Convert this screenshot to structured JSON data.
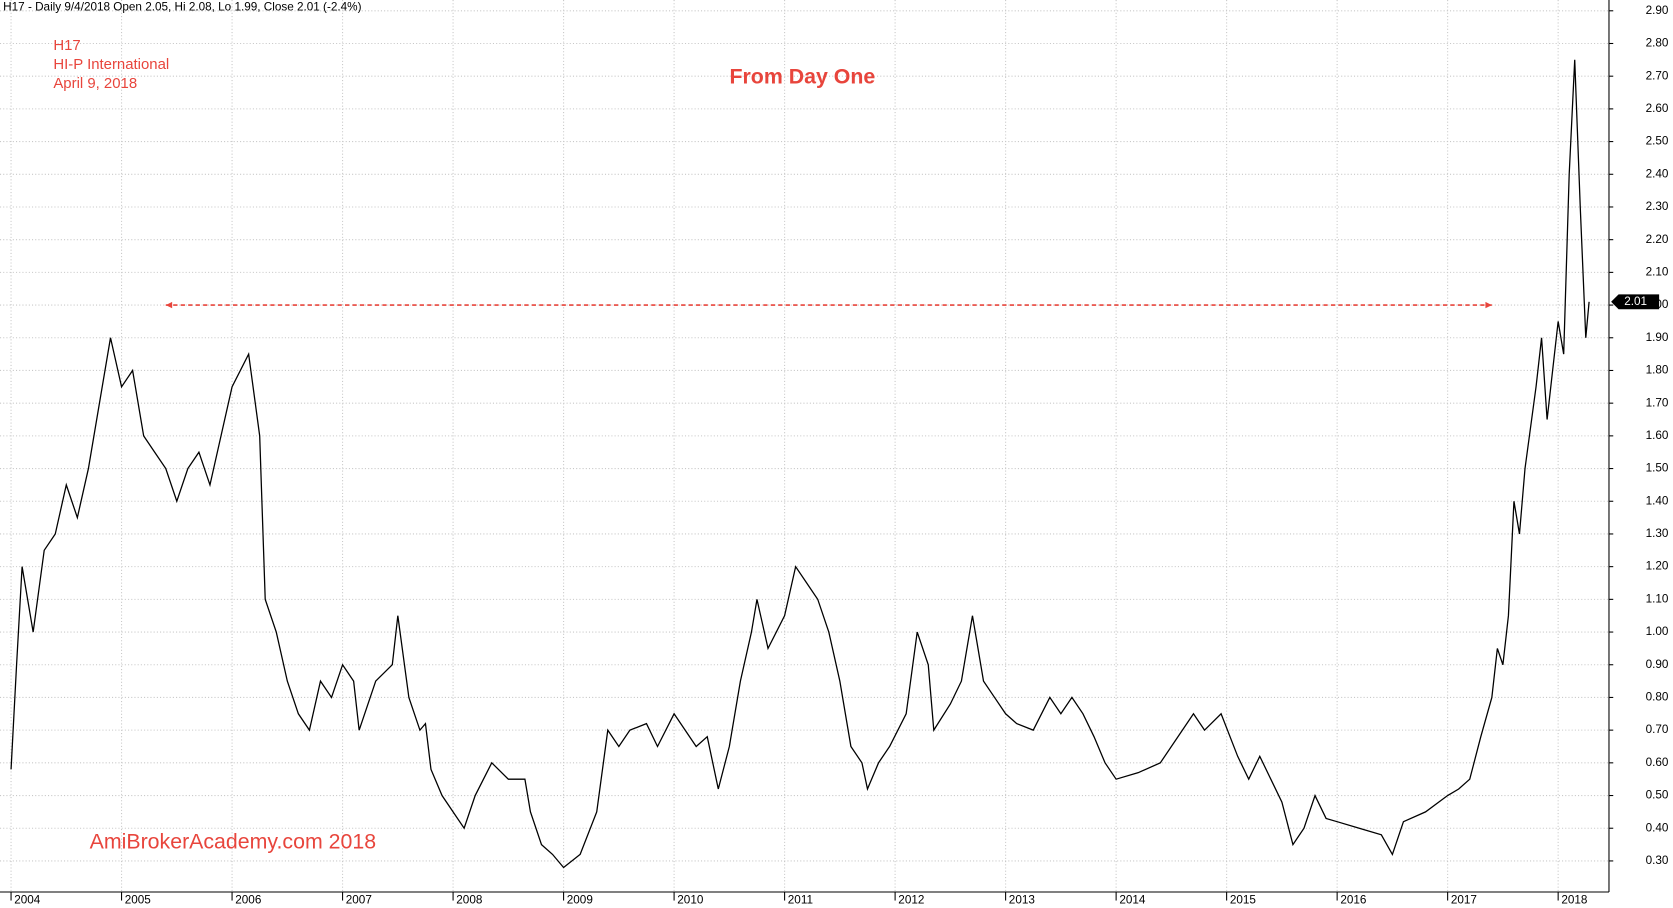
{
  "chart_data": {
    "type": "line",
    "header": "H17 - Daily 9/4/2018 Open 2.05, Hi 2.08, Lo 1.99, Close 2.01 (-2.4%)",
    "title": "From Day One",
    "annotations": [
      "H17",
      "HI-P International",
      "April 9, 2018"
    ],
    "watermark": "AmiBrokerAcademy.com  2018",
    "color": "#000000",
    "grid": true,
    "x": [
      2004.0,
      2004.05,
      2004.1,
      2004.2,
      2004.3,
      2004.4,
      2004.5,
      2004.6,
      2004.7,
      2004.8,
      2004.9,
      2005.0,
      2005.1,
      2005.2,
      2005.3,
      2005.4,
      2005.5,
      2005.6,
      2005.7,
      2005.8,
      2005.9,
      2006.0,
      2006.15,
      2006.25,
      2006.27,
      2006.3,
      2006.4,
      2006.5,
      2006.6,
      2006.7,
      2006.8,
      2006.9,
      2007.0,
      2007.1,
      2007.15,
      2007.3,
      2007.45,
      2007.5,
      2007.6,
      2007.7,
      2007.75,
      2007.8,
      2007.9,
      2008.0,
      2008.1,
      2008.2,
      2008.35,
      2008.5,
      2008.65,
      2008.7,
      2008.8,
      2008.9,
      2009.0,
      2009.15,
      2009.3,
      2009.4,
      2009.5,
      2009.6,
      2009.75,
      2009.85,
      2010.0,
      2010.1,
      2010.2,
      2010.3,
      2010.4,
      2010.5,
      2010.6,
      2010.7,
      2010.75,
      2010.85,
      2011.0,
      2011.1,
      2011.2,
      2011.3,
      2011.4,
      2011.5,
      2011.6,
      2011.7,
      2011.75,
      2011.85,
      2011.95,
      2012.1,
      2012.2,
      2012.3,
      2012.35,
      2012.5,
      2012.6,
      2012.7,
      2012.8,
      2012.9,
      2013.0,
      2013.1,
      2013.25,
      2013.4,
      2013.5,
      2013.6,
      2013.7,
      2013.8,
      2013.9,
      2014.0,
      2014.2,
      2014.4,
      2014.6,
      2014.7,
      2014.8,
      2014.95,
      2015.1,
      2015.2,
      2015.3,
      2015.4,
      2015.5,
      2015.6,
      2015.7,
      2015.8,
      2015.9,
      2016.0,
      2016.2,
      2016.4,
      2016.5,
      2016.6,
      2016.8,
      2017.0,
      2017.1,
      2017.2,
      2017.3,
      2017.4,
      2017.45,
      2017.5,
      2017.55,
      2017.6,
      2017.65,
      2017.7,
      2017.8,
      2017.85,
      2017.9,
      2017.95,
      2018.0,
      2018.05,
      2018.1,
      2018.15,
      2018.2,
      2018.25,
      2018.28
    ],
    "values": [
      0.58,
      0.9,
      1.2,
      1.0,
      1.25,
      1.3,
      1.45,
      1.35,
      1.5,
      1.7,
      1.9,
      1.75,
      1.8,
      1.6,
      1.55,
      1.5,
      1.4,
      1.5,
      1.55,
      1.45,
      1.6,
      1.75,
      1.85,
      1.6,
      1.4,
      1.1,
      1.0,
      0.85,
      0.75,
      0.7,
      0.85,
      0.8,
      0.9,
      0.85,
      0.7,
      0.85,
      0.9,
      1.05,
      0.8,
      0.7,
      0.72,
      0.58,
      0.5,
      0.45,
      0.4,
      0.5,
      0.6,
      0.55,
      0.55,
      0.45,
      0.35,
      0.32,
      0.28,
      0.32,
      0.45,
      0.7,
      0.65,
      0.7,
      0.72,
      0.65,
      0.75,
      0.7,
      0.65,
      0.68,
      0.52,
      0.65,
      0.85,
      1.0,
      1.1,
      0.95,
      1.05,
      1.2,
      1.15,
      1.1,
      1.0,
      0.85,
      0.65,
      0.6,
      0.52,
      0.6,
      0.65,
      0.75,
      1.0,
      0.9,
      0.7,
      0.78,
      0.85,
      1.05,
      0.85,
      0.8,
      0.75,
      0.72,
      0.7,
      0.8,
      0.75,
      0.8,
      0.75,
      0.68,
      0.6,
      0.55,
      0.57,
      0.6,
      0.7,
      0.75,
      0.7,
      0.75,
      0.62,
      0.55,
      0.62,
      0.55,
      0.48,
      0.35,
      0.4,
      0.5,
      0.43,
      0.42,
      0.4,
      0.38,
      0.32,
      0.42,
      0.45,
      0.5,
      0.52,
      0.55,
      0.68,
      0.8,
      0.95,
      0.9,
      1.05,
      1.4,
      1.3,
      1.5,
      1.75,
      1.9,
      1.65,
      1.8,
      1.95,
      1.85,
      2.4,
      2.75,
      2.3,
      1.9,
      2.01
    ],
    "close_label": 2.01,
    "reference_line": {
      "value": 2.0,
      "x": [
        2005.4,
        2017.4
      ],
      "color": "#e8453c"
    },
    "xlim": [
      2003.9,
      2018.46
    ],
    "xticks": [
      2004,
      2005,
      2006,
      2007,
      2008,
      2009,
      2010,
      2011,
      2012,
      2013,
      2014,
      2015,
      2016,
      2017,
      2018
    ],
    "ylim": [
      0.205,
      2.933
    ],
    "yticks": [
      {
        "value": 0.3,
        "label": "0.30"
      },
      {
        "value": 0.4,
        "label": "0.40"
      },
      {
        "value": 0.5,
        "label": "0.50"
      },
      {
        "value": 0.6,
        "label": "0.60"
      },
      {
        "value": 0.7,
        "label": "0.70"
      },
      {
        "value": 0.8,
        "label": "0.80"
      },
      {
        "value": 0.9,
        "label": "0.90"
      },
      {
        "value": 1.0,
        "label": "1.00"
      },
      {
        "value": 1.1,
        "label": "1.10"
      },
      {
        "value": 1.2,
        "label": "1.20"
      },
      {
        "value": 1.3,
        "label": "1.30"
      },
      {
        "value": 1.4,
        "label": "1.40"
      },
      {
        "value": 1.5,
        "label": "1.50"
      },
      {
        "value": 1.6,
        "label": "1.60"
      },
      {
        "value": 1.7,
        "label": "1.70"
      },
      {
        "value": 1.8,
        "label": "1.80"
      },
      {
        "value": 1.9,
        "label": "1.90"
      },
      {
        "value": 2.0,
        "label": "2.00"
      },
      {
        "value": 2.1,
        "label": "2.10"
      },
      {
        "value": 2.2,
        "label": "2.20"
      },
      {
        "value": 2.3,
        "label": "2.30"
      },
      {
        "value": 2.4,
        "label": "2.40"
      },
      {
        "value": 2.5,
        "label": "2.50"
      },
      {
        "value": 2.6,
        "label": "2.60"
      },
      {
        "value": 2.7,
        "label": "2.70"
      },
      {
        "value": 2.8,
        "label": "2.80"
      },
      {
        "value": 2.9,
        "label": "2.90"
      }
    ]
  }
}
